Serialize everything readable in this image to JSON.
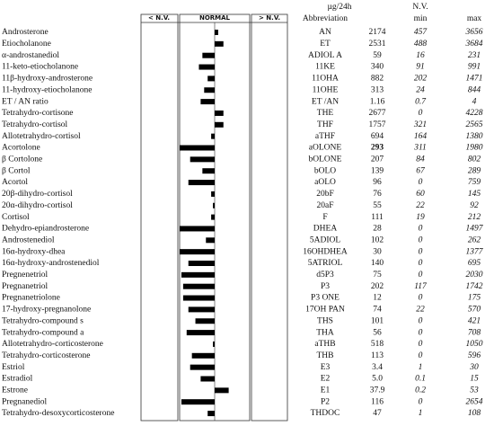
{
  "header": {
    "unit": "µg/24h",
    "nv": "N.V.",
    "below": "< N.V.",
    "normal": "NORMAL",
    "above": "> N.V.",
    "abbreviation": "Abbreviation",
    "min": "min",
    "max": "max"
  },
  "deviation_scale": "half-width of NORMAL box = 1",
  "rows": [
    {
      "name": "Androsterone",
      "abbr": "AN",
      "value": "2174",
      "min": "457",
      "max": "3656",
      "deviation": 0.1
    },
    {
      "name": "Etiocholanone",
      "abbr": "ET",
      "value": "2531",
      "min": "488",
      "max": "3684",
      "deviation": 0.25
    },
    {
      "name": "α-androstanediol",
      "abbr": "ADIOL A",
      "value": "59",
      "min": "16",
      "max": "231",
      "deviation": -0.35
    },
    {
      "name": "11-keto-etiocholanone",
      "abbr": "11KE",
      "value": "340",
      "min": "91",
      "max": "991",
      "deviation": -0.45
    },
    {
      "name": "11β-hydroxy-androsterone",
      "abbr": "11OHA",
      "value": "882",
      "min": "202",
      "max": "1471",
      "deviation": -0.2
    },
    {
      "name": "11-hydroxy-etiocholanone",
      "abbr": "11OHE",
      "value": "313",
      "min": "24",
      "max": "844",
      "deviation": -0.3
    },
    {
      "name": "ET / AN ratio",
      "abbr": "ET /AN",
      "value": "1.16",
      "min": "0.7",
      "max": "4",
      "deviation": -0.4
    },
    {
      "name": "Tetrahydro-cortisone",
      "abbr": "THE",
      "value": "2677",
      "min": "0",
      "max": "4228",
      "deviation": 0.25
    },
    {
      "name": "Tetrahydro-cortisol",
      "abbr": "THF",
      "value": "1757",
      "min": "321",
      "max": "2565",
      "deviation": 0.25
    },
    {
      "name": "Allotetrahydro-cortisol",
      "abbr": "aTHF",
      "value": "694",
      "min": "164",
      "max": "1380",
      "deviation": -0.1
    },
    {
      "name": "Acortolone",
      "abbr": "aOLONE",
      "value": "293",
      "bold": true,
      "min": "311",
      "max": "1980",
      "deviation": -1.0
    },
    {
      "name": "β Cortolone",
      "abbr": "bOLONE",
      "value": "207",
      "min": "84",
      "max": "802",
      "deviation": -0.7
    },
    {
      "name": "β Cortol",
      "abbr": "bOLO",
      "value": "139",
      "min": "67",
      "max": "289",
      "deviation": -0.35
    },
    {
      "name": "Acortol",
      "abbr": "aOLO",
      "value": "96",
      "min": "0",
      "max": "759",
      "deviation": -0.75
    },
    {
      "name": "20β-dihydro-cortisol",
      "abbr": "20bF",
      "value": "76",
      "min": "60",
      "max": "145",
      "deviation": -0.1
    },
    {
      "name": "20α-dihydro-cortisol",
      "abbr": "20aF",
      "value": "55",
      "min": "22",
      "max": "92",
      "deviation": -0.05
    },
    {
      "name": "Cortisol",
      "abbr": "F",
      "value": "111",
      "min": "19",
      "max": "212",
      "deviation": -0.1
    },
    {
      "name": "Dehydro-epiandrosterone",
      "abbr": "DHEA",
      "value": "28",
      "min": "0",
      "max": "1497",
      "deviation": -1.0
    },
    {
      "name": "Androstenediol",
      "abbr": "5ADIOL",
      "value": "102",
      "min": "0",
      "max": "262",
      "deviation": -0.25
    },
    {
      "name": "16α-hydroxy-dhea",
      "abbr": "16OHDHEA",
      "value": "30",
      "min": "0",
      "max": "1377",
      "deviation": -1.0
    },
    {
      "name": "16α-hydroxy-androstenediol",
      "abbr": "5ATRIOL",
      "value": "140",
      "min": "0",
      "max": "695",
      "deviation": -0.75
    },
    {
      "name": "Pregnenetriol",
      "abbr": "d5P3",
      "value": "75",
      "min": "0",
      "max": "2030",
      "deviation": -0.95
    },
    {
      "name": "Pregnanetriol",
      "abbr": "P3",
      "value": "202",
      "min": "117",
      "max": "1742",
      "deviation": -0.9
    },
    {
      "name": "Pregnanetriolone",
      "abbr": "P3 ONE",
      "value": "12",
      "min": "0",
      "max": "175",
      "deviation": -0.9
    },
    {
      "name": "17-hydroxy-pregnanolone",
      "abbr": "17OH PAN",
      "value": "74",
      "min": "22",
      "max": "570",
      "deviation": -0.75
    },
    {
      "name": "Tetrahydro-compound s",
      "abbr": "THS",
      "value": "101",
      "min": "0",
      "max": "421",
      "deviation": -0.55
    },
    {
      "name": "Tetrahydro-compound a",
      "abbr": "THA",
      "value": "56",
      "min": "0",
      "max": "708",
      "deviation": -0.8
    },
    {
      "name": "Allotetrahydro-corticosterone",
      "abbr": "aTHB",
      "value": "518",
      "min": "0",
      "max": "1050",
      "deviation": -0.05
    },
    {
      "name": "Tetrahydro-corticosterone",
      "abbr": "THB",
      "value": "113",
      "min": "0",
      "max": "596",
      "deviation": -0.65
    },
    {
      "name": "Estriol",
      "abbr": "E3",
      "value": "3.4",
      "min": "1",
      "max": "30",
      "deviation": -0.7
    },
    {
      "name": "Estradiol",
      "abbr": "E2",
      "value": "5.0",
      "min": "0.1",
      "max": "15",
      "deviation": -0.4
    },
    {
      "name": "Estrone",
      "abbr": "E1",
      "value": "37.9",
      "min": "0.2",
      "max": "53",
      "deviation": 0.4
    },
    {
      "name": "Pregnanediol",
      "abbr": "P2",
      "value": "116",
      "min": "0",
      "max": "2654",
      "deviation": -0.95
    },
    {
      "name": "Tetrahydro-desoxycorticosterone",
      "abbr": "THDOC",
      "value": "47",
      "min": "1",
      "max": "108",
      "deviation": -0.2
    }
  ]
}
